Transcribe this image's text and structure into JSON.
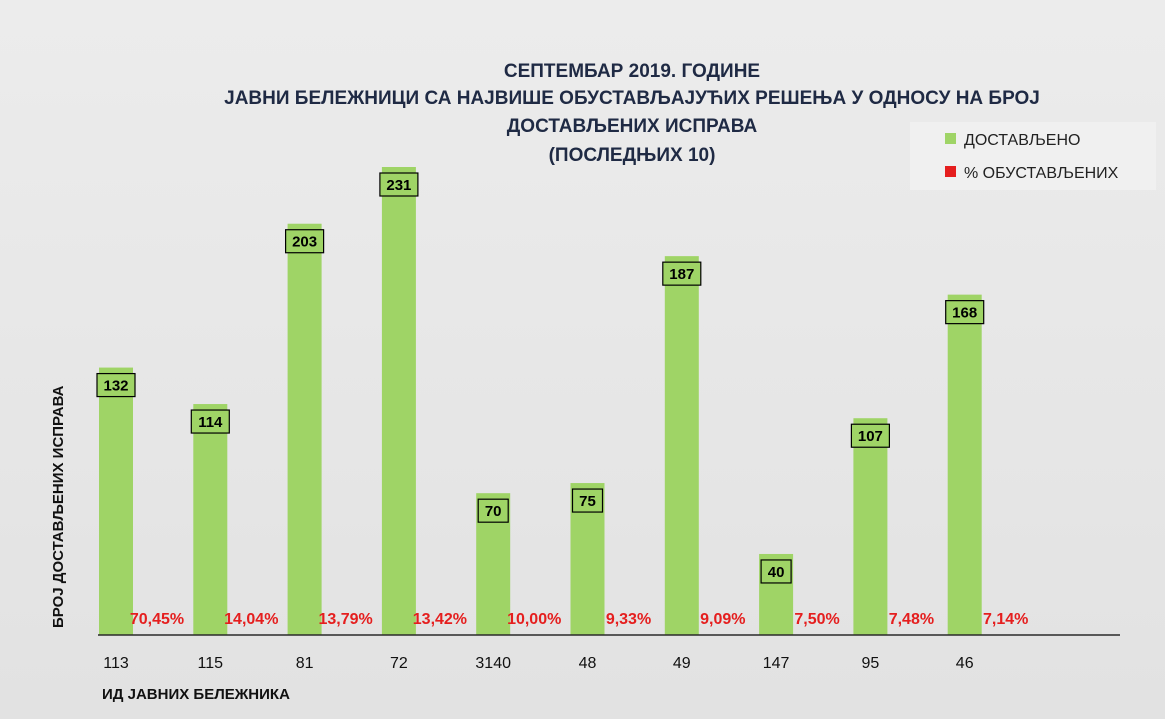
{
  "chart_data": {
    "type": "bar",
    "title": [
      "СЕПТЕМБАР 2019. ГОДИНЕ",
      "ЈАВНИ БЕЛЕЖНИЦИ СА НАЈВИШЕ ОБУСТАВЉАЈУЋИХ РЕШЕЊА У ОДНОСУ НА БРОЈ",
      "ДОСТАВЉЕНИХ ИСПРАВА",
      "(ПОСЛЕДЊИХ 10)"
    ],
    "xlabel": "ИД ЈАВНИХ БЕЛЕЖНИКА",
    "ylabel": "БРОЈ ДОСТАВЉЕНИХ ИСПРАВА",
    "categories": [
      "113",
      "115",
      "81",
      "72",
      "3140",
      "48",
      "49",
      "147",
      "95",
      "46"
    ],
    "ylim": [
      0,
      260
    ],
    "grid": false,
    "legend_position": "top-right",
    "series": [
      {
        "name": "ДОСТАВЉЕНО",
        "color": "#9fd466",
        "values": [
          132,
          114,
          203,
          231,
          70,
          75,
          187,
          40,
          107,
          168
        ]
      },
      {
        "name": "% ОБУСТАВЉЕНИХ",
        "color": "#e51e1e",
        "values": [
          70.45,
          14.04,
          13.79,
          13.42,
          10.0,
          9.33,
          9.09,
          7.5,
          7.48,
          7.14
        ],
        "labels": [
          "70,45%",
          "14,04%",
          "13,79%",
          "13,42%",
          "10,00%",
          "9,33%",
          "9,09%",
          "7,50%",
          "7,48%",
          "7,14%"
        ]
      }
    ]
  }
}
